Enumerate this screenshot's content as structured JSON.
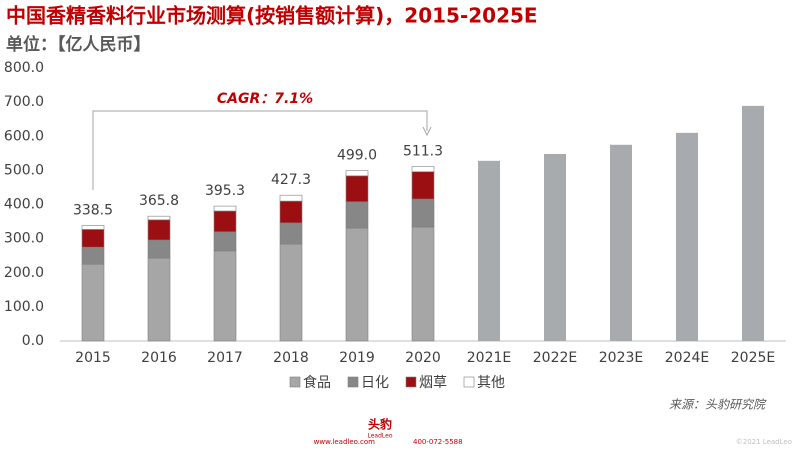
{
  "chart_data": {
    "type": "stacked_bar",
    "title": "中国香精香料行业市场测算(按销售额计算)，2015-2025E",
    "subtitle": "单位：【亿人民币】",
    "categories": [
      "2015",
      "2016",
      "2017",
      "2018",
      "2019",
      "2020",
      "2021E",
      "2022E",
      "2023E",
      "2024E",
      "2025E"
    ],
    "series": [
      {
        "name": "食品",
        "color": "#a6a6a6",
        "values": [
          225,
          243,
          264,
          284,
          331,
          334,
          null,
          null,
          null,
          null,
          null
        ]
      },
      {
        "name": "日化",
        "color": "#878787",
        "values": [
          50,
          53,
          56,
          62,
          77,
          82,
          null,
          null,
          null,
          null,
          null
        ]
      },
      {
        "name": "烟草",
        "color": "#9b0e12",
        "values": [
          52,
          59,
          61,
          64,
          76,
          80,
          null,
          null,
          null,
          null,
          null
        ]
      },
      {
        "name": "其他",
        "color": "#ffffff",
        "values": [
          11.5,
          10.8,
          14.3,
          17.3,
          15,
          15.3,
          null,
          null,
          null,
          null,
          null
        ]
      }
    ],
    "forecast": {
      "color": "#a7abae",
      "values": [
        null,
        null,
        null,
        null,
        null,
        null,
        528,
        548,
        575,
        610,
        689
      ]
    },
    "totals": [
      338.5,
      365.8,
      395.3,
      427.3,
      499.0,
      511.3,
      null,
      null,
      null,
      null,
      null
    ],
    "value_labels": [
      "338.5",
      "365.8",
      "395.3",
      "427.3",
      "499.0",
      "511.3",
      null,
      null,
      null,
      null,
      null
    ],
    "ylim": [
      0,
      800
    ],
    "yticks": [
      {
        "value": 0,
        "label": "0.0"
      },
      {
        "value": 100,
        "label": "100.0"
      },
      {
        "value": 200,
        "label": "200.0"
      },
      {
        "value": 300,
        "label": "300.0"
      },
      {
        "value": 400,
        "label": "400.0"
      },
      {
        "value": 500,
        "label": "500.0"
      },
      {
        "value": 600,
        "label": "600.0"
      },
      {
        "value": 700,
        "label": "700.0"
      },
      {
        "value": 800,
        "label": "800.0"
      }
    ],
    "annotation": "CAGR：7.1%",
    "source": "来源：头豹研究院",
    "footer": {
      "brand": "头豹",
      "brand_en": "LeadLeo",
      "website": "www.leadleo.com",
      "phone": "400-072-5588",
      "copyright": "©2021 LeadLeo"
    }
  }
}
